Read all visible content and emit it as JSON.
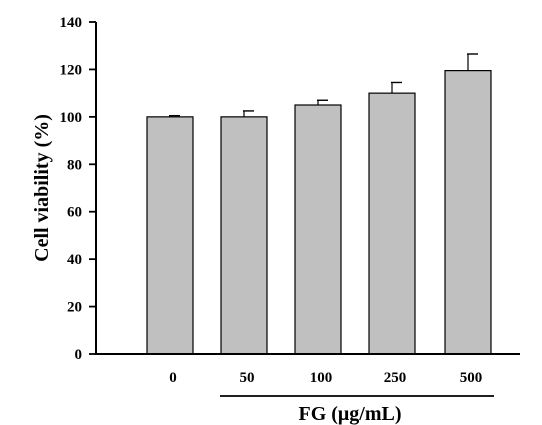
{
  "chart_data": {
    "type": "bar",
    "categories": [
      "0",
      "50",
      "100",
      "250",
      "500"
    ],
    "values": [
      100,
      100,
      105,
      110,
      119.5
    ],
    "errors": [
      0.5,
      2.5,
      2,
      4.5,
      7
    ],
    "ylabel": "Cell viability (%)",
    "xlabel": "FG (μg/mL)",
    "ylim": [
      0,
      140
    ],
    "yticks": [
      "0",
      "20",
      "40",
      "60",
      "80",
      "100",
      "120",
      "140"
    ],
    "grid": false,
    "legend": "none",
    "bar_color": "#c0c0c0"
  }
}
